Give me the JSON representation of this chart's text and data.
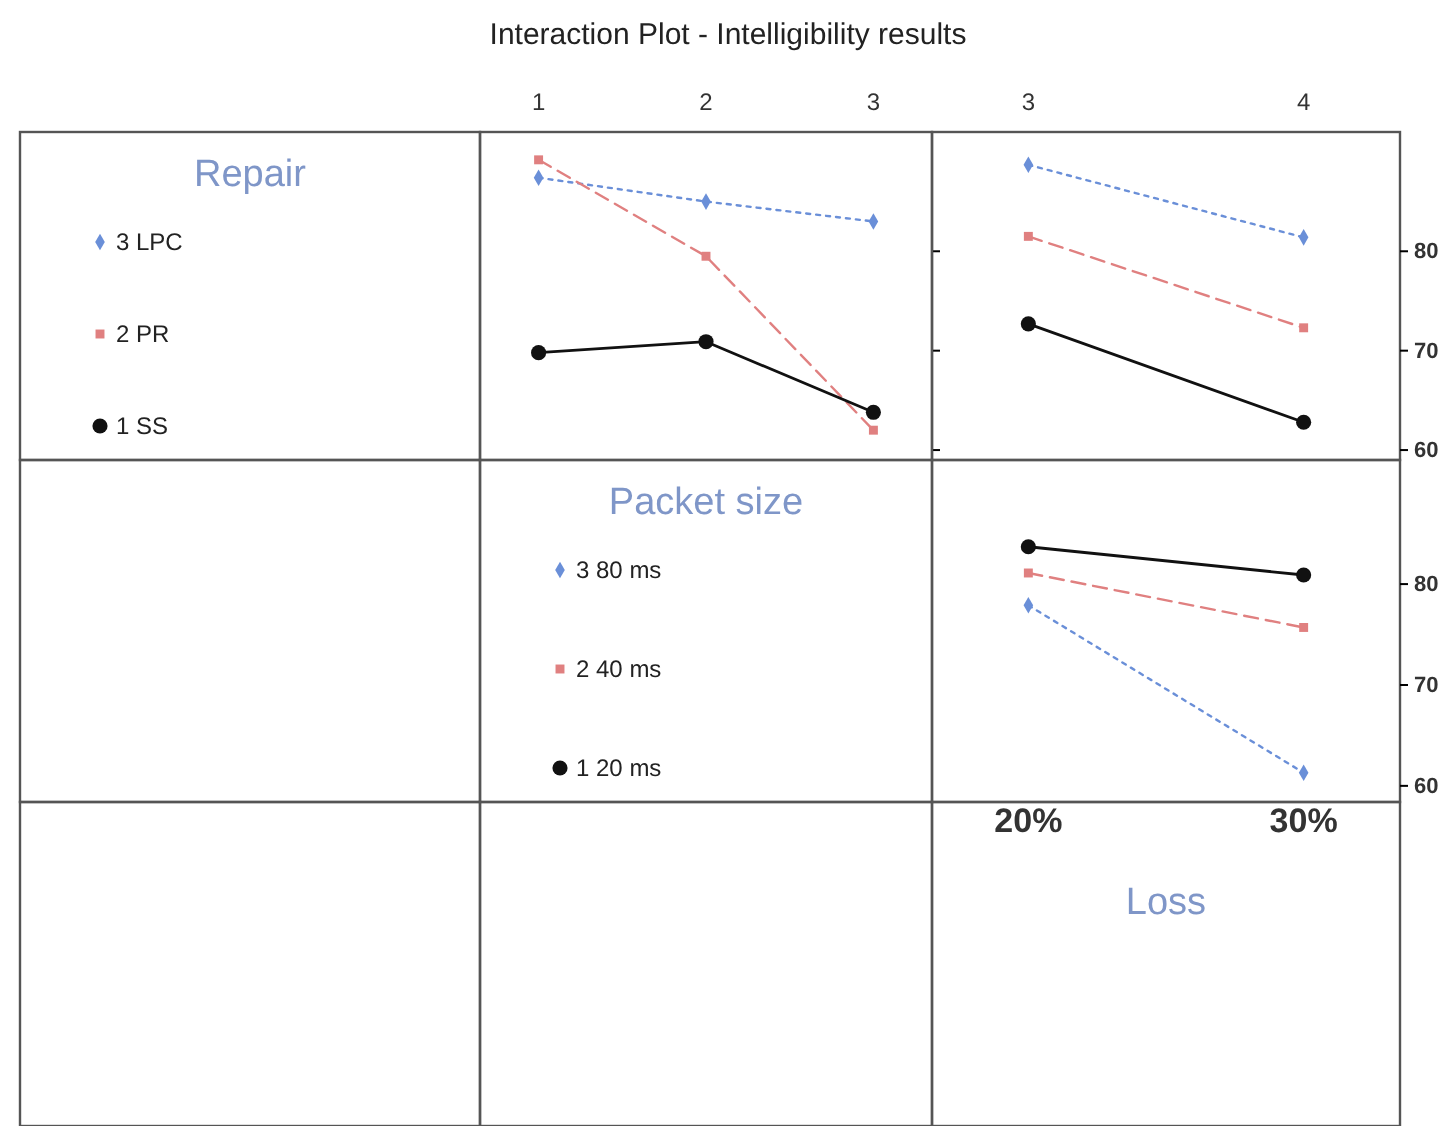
{
  "chart_data": [
    {
      "type": "line",
      "title": "Interaction Plot - Intelligibility results",
      "legend_title": "Repair",
      "legend": "left",
      "categories": [
        "1",
        "2",
        "3"
      ],
      "ylim": [
        59,
        92
      ],
      "yticks": [
        60,
        70,
        80
      ],
      "tick_labels": "x",
      "series": [
        {
          "name": "3 LPC",
          "color": "#6a8fd8",
          "marker": "diamond",
          "line_style": "dotted",
          "values": [
            87.4,
            85,
            83
          ]
        },
        {
          "name": "2 PR",
          "color": "#e08080",
          "marker": "square",
          "line_style": "dashed",
          "values": [
            89.2,
            79.5,
            62
          ]
        },
        {
          "name": "1 SS",
          "color": "#111111",
          "marker": "circle",
          "line_style": "solid",
          "values": [
            69.8,
            70.9,
            63.8
          ]
        }
      ]
    },
    {
      "type": "line",
      "categories": [
        "3",
        "4"
      ],
      "ylim": [
        59,
        92
      ],
      "yticks": [
        60,
        70,
        80
      ],
      "series": [
        {
          "color": "#6a8fd8",
          "marker": "diamond",
          "line_style": "dotted",
          "values": [
            88.7,
            81.4
          ]
        },
        {
          "color": "#e08080",
          "marker": "square",
          "line_style": "dashed",
          "values": [
            81.5,
            72.3
          ]
        },
        {
          "color": "#111111",
          "marker": "circle",
          "line_style": "solid",
          "values": [
            72.7,
            62.8
          ]
        }
      ]
    },
    {
      "type": "line",
      "legend_title": "Packet size",
      "legend": "left",
      "xlabel": "Loss",
      "categories": [
        "20%",
        "30%"
      ],
      "ylim": [
        58.4,
        92.3
      ],
      "yticks": [
        60,
        70,
        80
      ],
      "series": [
        {
          "name": "3 80 ms",
          "color": "#6a8fd8",
          "marker": "diamond",
          "line_style": "dotted",
          "values": [
            77.9,
            61.3
          ]
        },
        {
          "name": "2 40 ms",
          "color": "#e08080",
          "marker": "square",
          "line_style": "dashed",
          "values": [
            81.1,
            75.7
          ]
        },
        {
          "name": "1 20 ms",
          "color": "#111111",
          "marker": "circle",
          "line_style": "solid",
          "values": [
            83.7,
            80.9
          ]
        }
      ]
    }
  ]
}
